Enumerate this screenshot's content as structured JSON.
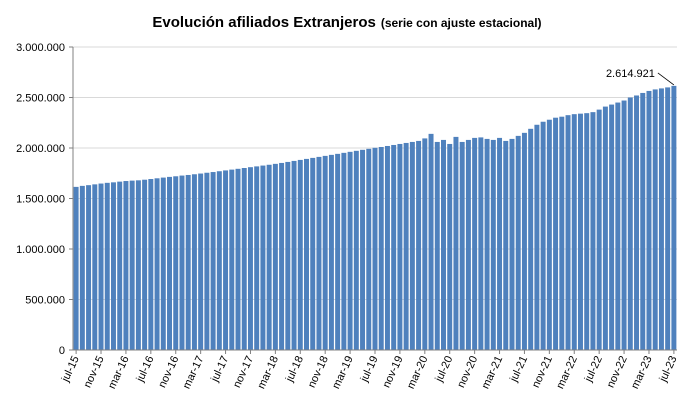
{
  "chart_data": {
    "type": "bar",
    "title": "Evolución afiliados Extranjeros",
    "subtitle": "(serie con ajuste estacional)",
    "xlabel": "",
    "ylabel": "",
    "ylim": [
      0,
      3000000
    ],
    "y_ticks": [
      "0",
      "500.000",
      "1.000.000",
      "1.500.000",
      "2.000.000",
      "2.500.000",
      "3.000.000"
    ],
    "y_tick_values": [
      0,
      500000,
      1000000,
      1500000,
      2000000,
      2500000,
      3000000
    ],
    "x_tick_labels": [
      "jul-15",
      "nov-15",
      "mar-16",
      "jul-16",
      "nov-16",
      "mar-17",
      "jul-17",
      "nov-17",
      "mar-18",
      "jul-18",
      "nov-18",
      "mar-19",
      "jul-19",
      "nov-19",
      "mar-20",
      "jul-20",
      "nov-20",
      "mar-21",
      "jul-21",
      "nov-21",
      "mar-22",
      "jul-22",
      "nov-22",
      "mar-23",
      "jul-23"
    ],
    "grid": true,
    "legend": "none",
    "bar_color": "#4f81bd",
    "annotation": {
      "label": "2.614.921",
      "value": 2614921
    },
    "categories": [
      "jul-15",
      "ago-15",
      "sep-15",
      "oct-15",
      "nov-15",
      "dic-15",
      "ene-16",
      "feb-16",
      "mar-16",
      "abr-16",
      "may-16",
      "jun-16",
      "jul-16",
      "ago-16",
      "sep-16",
      "oct-16",
      "nov-16",
      "dic-16",
      "ene-17",
      "feb-17",
      "mar-17",
      "abr-17",
      "may-17",
      "jun-17",
      "jul-17",
      "ago-17",
      "sep-17",
      "oct-17",
      "nov-17",
      "dic-17",
      "ene-18",
      "feb-18",
      "mar-18",
      "abr-18",
      "may-18",
      "jun-18",
      "jul-18",
      "ago-18",
      "sep-18",
      "oct-18",
      "nov-18",
      "dic-18",
      "ene-19",
      "feb-19",
      "mar-19",
      "abr-19",
      "may-19",
      "jun-19",
      "jul-19",
      "ago-19",
      "sep-19",
      "oct-19",
      "nov-19",
      "dic-19",
      "ene-20",
      "feb-20",
      "mar-20",
      "abr-20",
      "may-20",
      "jun-20",
      "jul-20",
      "ago-20",
      "sep-20",
      "oct-20",
      "nov-20",
      "dic-20",
      "ene-21",
      "feb-21",
      "mar-21",
      "abr-21",
      "may-21",
      "jun-21",
      "jul-21",
      "ago-21",
      "sep-21",
      "oct-21",
      "nov-21",
      "dic-21",
      "ene-22",
      "feb-22",
      "mar-22",
      "abr-22",
      "may-22",
      "jun-22",
      "jul-22",
      "ago-22",
      "sep-22",
      "oct-22",
      "nov-22",
      "dic-22",
      "ene-23",
      "feb-23",
      "mar-23",
      "abr-23",
      "may-23",
      "jun-23",
      "jul-23"
    ],
    "values": [
      1615000,
      1625000,
      1632000,
      1640000,
      1648000,
      1655000,
      1660000,
      1667000,
      1673000,
      1677000,
      1680000,
      1686000,
      1693000,
      1700000,
      1707000,
      1714000,
      1720000,
      1727000,
      1733000,
      1740000,
      1747000,
      1755000,
      1762000,
      1770000,
      1778000,
      1786000,
      1794000,
      1802000,
      1810000,
      1818000,
      1826000,
      1834000,
      1843000,
      1852000,
      1862000,
      1872000,
      1882000,
      1892000,
      1902000,
      1912000,
      1922000,
      1932000,
      1942000,
      1952000,
      1962000,
      1972000,
      1982000,
      1992000,
      2002000,
      2010000,
      2020000,
      2030000,
      2040000,
      2050000,
      2060000,
      2070000,
      2095000,
      2140000,
      2060000,
      2080000,
      2040000,
      2110000,
      2060000,
      2080000,
      2100000,
      2105000,
      2090000,
      2080000,
      2100000,
      2070000,
      2090000,
      2120000,
      2150000,
      2190000,
      2230000,
      2260000,
      2280000,
      2300000,
      2310000,
      2325000,
      2335000,
      2340000,
      2345000,
      2355000,
      2380000,
      2410000,
      2430000,
      2450000,
      2470000,
      2500000,
      2520000,
      2545000,
      2565000,
      2580000,
      2590000,
      2600000,
      2614921
    ]
  }
}
